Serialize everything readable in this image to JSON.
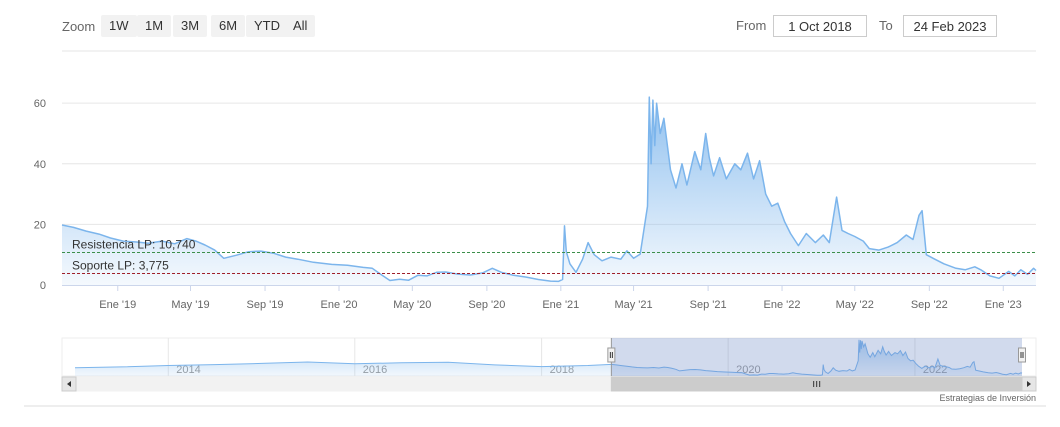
{
  "range_selector": {
    "zoom_label": "Zoom",
    "buttons": [
      "1W",
      "1M",
      "3M",
      "6M",
      "YTD",
      "All"
    ],
    "from_label": "From",
    "from_value": "1 Oct 2018",
    "to_label": "To",
    "to_value": "24 Feb 2023"
  },
  "chart_data": {
    "type": "area",
    "title": "",
    "xlabel": "",
    "ylabel": "",
    "x_range": [
      "2018-10-01",
      "2023-02-24"
    ],
    "ylim": [
      0,
      65
    ],
    "y_ticks": [
      0,
      20,
      40,
      60
    ],
    "x_ticks": [
      {
        "date": "2019-01-01",
        "label": "Ene '19"
      },
      {
        "date": "2019-05-01",
        "label": "May '19"
      },
      {
        "date": "2019-09-01",
        "label": "Sep '19"
      },
      {
        "date": "2020-01-01",
        "label": "Ene '20"
      },
      {
        "date": "2020-05-01",
        "label": "May '20"
      },
      {
        "date": "2020-09-01",
        "label": "Sep '20"
      },
      {
        "date": "2021-01-01",
        "label": "Ene '21"
      },
      {
        "date": "2021-05-01",
        "label": "May '21"
      },
      {
        "date": "2021-09-01",
        "label": "Sep '21"
      },
      {
        "date": "2022-01-01",
        "label": "Ene '22"
      },
      {
        "date": "2022-05-01",
        "label": "May '22"
      },
      {
        "date": "2022-09-01",
        "label": "Sep '22"
      },
      {
        "date": "2023-01-01",
        "label": "Ene '23"
      }
    ],
    "series": [
      {
        "color": "#7cb5ec",
        "points": [
          [
            "2018-10-01",
            19.8
          ],
          [
            "2018-10-20",
            19.0
          ],
          [
            "2018-11-10",
            17.8
          ],
          [
            "2018-12-01",
            16.8
          ],
          [
            "2018-12-20",
            15.5
          ],
          [
            "2019-01-10",
            14.5
          ],
          [
            "2019-02-01",
            14.2
          ],
          [
            "2019-02-20",
            13.8
          ],
          [
            "2019-03-15",
            14.5
          ],
          [
            "2019-04-05",
            13.6
          ],
          [
            "2019-04-25",
            15.3
          ],
          [
            "2019-05-10",
            14.5
          ],
          [
            "2019-05-25",
            13.2
          ],
          [
            "2019-06-10",
            11.5
          ],
          [
            "2019-06-25",
            8.8
          ],
          [
            "2019-07-15",
            9.8
          ],
          [
            "2019-08-05",
            11.0
          ],
          [
            "2019-08-25",
            11.2
          ],
          [
            "2019-09-15",
            10.5
          ],
          [
            "2019-10-05",
            9.2
          ],
          [
            "2019-10-25",
            8.5
          ],
          [
            "2019-11-20",
            7.5
          ],
          [
            "2019-12-20",
            6.8
          ],
          [
            "2020-01-15",
            6.5
          ],
          [
            "2020-02-10",
            5.8
          ],
          [
            "2020-02-25",
            5.5
          ],
          [
            "2020-03-10",
            3.5
          ],
          [
            "2020-03-25",
            1.5
          ],
          [
            "2020-04-10",
            1.9
          ],
          [
            "2020-04-25",
            1.6
          ],
          [
            "2020-05-10",
            3.2
          ],
          [
            "2020-05-25",
            3.0
          ],
          [
            "2020-06-10",
            4.2
          ],
          [
            "2020-06-25",
            4.3
          ],
          [
            "2020-07-15",
            3.6
          ],
          [
            "2020-08-05",
            3.3
          ],
          [
            "2020-08-25",
            4.0
          ],
          [
            "2020-09-10",
            5.5
          ],
          [
            "2020-09-25",
            4.2
          ],
          [
            "2020-10-15",
            3.2
          ],
          [
            "2020-11-05",
            2.6
          ],
          [
            "2020-11-25",
            1.8
          ],
          [
            "2020-12-15",
            1.3
          ],
          [
            "2020-12-28",
            1.2
          ],
          [
            "2021-01-04",
            1.8
          ],
          [
            "2021-01-07",
            19.5
          ],
          [
            "2021-01-10",
            11.0
          ],
          [
            "2021-01-16",
            7.0
          ],
          [
            "2021-01-26",
            4.2
          ],
          [
            "2021-02-06",
            8.5
          ],
          [
            "2021-02-15",
            14.0
          ],
          [
            "2021-02-25",
            10.0
          ],
          [
            "2021-03-10",
            8.0
          ],
          [
            "2021-03-25",
            9.2
          ],
          [
            "2021-04-10",
            8.5
          ],
          [
            "2021-04-20",
            11.3
          ],
          [
            "2021-05-01",
            8.8
          ],
          [
            "2021-05-12",
            10.2
          ],
          [
            "2021-05-24",
            26.0
          ],
          [
            "2021-05-27",
            62.0
          ],
          [
            "2021-05-30",
            40.0
          ],
          [
            "2021-06-02",
            61.0
          ],
          [
            "2021-06-05",
            46.0
          ],
          [
            "2021-06-08",
            60.0
          ],
          [
            "2021-06-14",
            50.0
          ],
          [
            "2021-06-20",
            55.0
          ],
          [
            "2021-07-01",
            38.0
          ],
          [
            "2021-07-10",
            32.0
          ],
          [
            "2021-07-20",
            40.0
          ],
          [
            "2021-07-28",
            33.0
          ],
          [
            "2021-08-10",
            44.0
          ],
          [
            "2021-08-20",
            38.0
          ],
          [
            "2021-08-28",
            50.0
          ],
          [
            "2021-09-03",
            42.0
          ],
          [
            "2021-09-10",
            36.0
          ],
          [
            "2021-09-20",
            42.0
          ],
          [
            "2021-10-01",
            35.0
          ],
          [
            "2021-10-15",
            40.0
          ],
          [
            "2021-10-25",
            38.0
          ],
          [
            "2021-11-05",
            43.5
          ],
          [
            "2021-11-15",
            35.0
          ],
          [
            "2021-11-25",
            41.0
          ],
          [
            "2021-12-05",
            30.0
          ],
          [
            "2021-12-15",
            26.0
          ],
          [
            "2021-12-25",
            27.0
          ],
          [
            "2022-01-05",
            21.0
          ],
          [
            "2022-01-15",
            17.0
          ],
          [
            "2022-01-28",
            13.0
          ],
          [
            "2022-02-10",
            17.0
          ],
          [
            "2022-02-25",
            14.0
          ],
          [
            "2022-03-10",
            16.5
          ],
          [
            "2022-03-20",
            14.0
          ],
          [
            "2022-04-01",
            29.0
          ],
          [
            "2022-04-10",
            18.0
          ],
          [
            "2022-04-20",
            17.0
          ],
          [
            "2022-05-01",
            16.0
          ],
          [
            "2022-05-15",
            14.5
          ],
          [
            "2022-05-25",
            12.0
          ],
          [
            "2022-06-10",
            11.5
          ],
          [
            "2022-06-25",
            12.5
          ],
          [
            "2022-07-10",
            14.0
          ],
          [
            "2022-07-25",
            16.5
          ],
          [
            "2022-08-05",
            15.0
          ],
          [
            "2022-08-15",
            23.0
          ],
          [
            "2022-08-20",
            24.5
          ],
          [
            "2022-08-27",
            10.0
          ],
          [
            "2022-09-10",
            8.5
          ],
          [
            "2022-09-25",
            7.0
          ],
          [
            "2022-10-15",
            5.5
          ],
          [
            "2022-10-30",
            5.0
          ],
          [
            "2022-11-15",
            6.0
          ],
          [
            "2022-11-25",
            5.0
          ],
          [
            "2022-12-10",
            3.0
          ],
          [
            "2022-12-25",
            2.2
          ],
          [
            "2023-01-10",
            4.5
          ],
          [
            "2023-01-20",
            3.0
          ],
          [
            "2023-01-30",
            5.0
          ],
          [
            "2023-02-10",
            3.5
          ],
          [
            "2023-02-20",
            5.5
          ],
          [
            "2023-02-24",
            4.8
          ]
        ]
      }
    ],
    "plot_lines": [
      {
        "label": "Resistencia LP: 10,740",
        "value": 10.74,
        "color": "#3c8f4a",
        "dash": "dashed"
      },
      {
        "label": "Soporte LP: 3,775",
        "value": 3.775,
        "color": "#a01e2a",
        "dash": "dashed"
      }
    ],
    "grid": true,
    "legend": "none"
  },
  "navigator": {
    "x_range": [
      "2013-01-01",
      "2023-02-24"
    ],
    "selected_range": [
      "2018-10-01",
      "2023-02-24"
    ],
    "labels": [
      {
        "date": "2014-01-01",
        "label": "2014"
      },
      {
        "date": "2016-01-01",
        "label": "2016"
      },
      {
        "date": "2018-01-01",
        "label": "2018"
      },
      {
        "date": "2020-01-01",
        "label": "2020"
      },
      {
        "date": "2022-01-01",
        "label": "2022"
      }
    ],
    "history": [
      [
        "2013-01-01",
        14.0
      ],
      [
        "2013-07-01",
        15.5
      ],
      [
        "2014-01-01",
        18.0
      ],
      [
        "2014-07-01",
        19.5
      ],
      [
        "2015-01-01",
        21.5
      ],
      [
        "2015-07-01",
        24.0
      ],
      [
        "2016-01-01",
        21.0
      ],
      [
        "2016-07-01",
        22.5
      ],
      [
        "2017-01-01",
        23.5
      ],
      [
        "2017-07-01",
        19.0
      ],
      [
        "2018-01-01",
        16.0
      ],
      [
        "2018-07-01",
        18.0
      ]
    ]
  },
  "credits": "Estrategias de Inversión"
}
